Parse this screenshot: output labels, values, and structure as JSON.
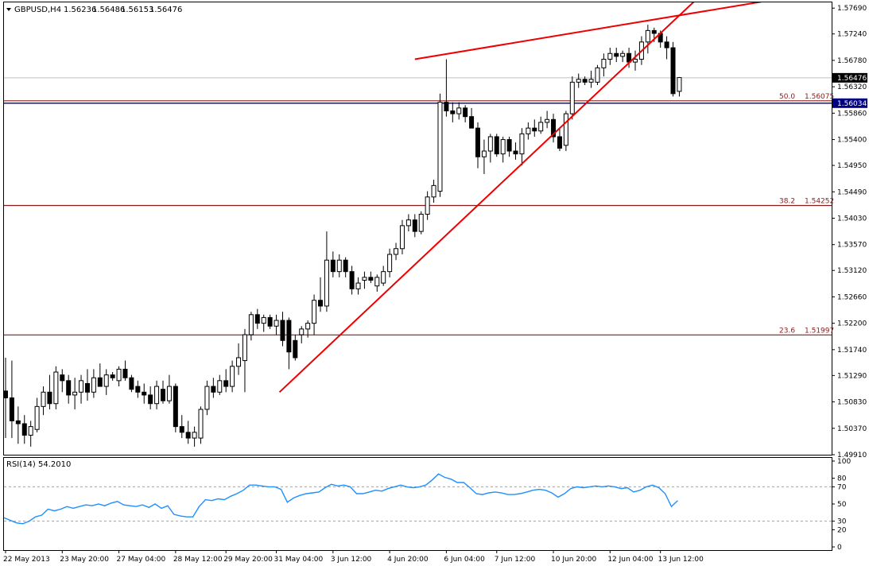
{
  "chart_data": [
    {
      "type": "candlestick",
      "header": {
        "symbol": "GBPUSD,H4",
        "open": "1.56236",
        "high": "1.56486",
        "low": "1.56153",
        "close": "1.56476"
      },
      "ylim": [
        1.4991,
        1.5779
      ],
      "price_ticks": [
        "1.57690",
        "1.57240",
        "1.56780",
        "1.56320",
        "1.55860",
        "1.55400",
        "1.54950",
        "1.54490",
        "1.54030",
        "1.53570",
        "1.53120",
        "1.52660",
        "1.52200",
        "1.51740",
        "1.51290",
        "1.50830",
        "1.50370",
        "1.49910"
      ],
      "current_price": "1.56476",
      "bid_line": "1.56034",
      "candles": [
        {
          "o": 1.5102,
          "h": 1.516,
          "l": 1.502,
          "c": 1.509
        },
        {
          "o": 1.509,
          "h": 1.5155,
          "l": 1.502,
          "c": 1.505
        },
        {
          "o": 1.505,
          "h": 1.5075,
          "l": 1.501,
          "c": 1.5045
        },
        {
          "o": 1.5045,
          "h": 1.506,
          "l": 1.501,
          "c": 1.5025
        },
        {
          "o": 1.5025,
          "h": 1.505,
          "l": 1.5005,
          "c": 1.504
        },
        {
          "o": 1.5035,
          "h": 1.509,
          "l": 1.503,
          "c": 1.5075
        },
        {
          "o": 1.5075,
          "h": 1.511,
          "l": 1.506,
          "c": 1.51
        },
        {
          "o": 1.51,
          "h": 1.513,
          "l": 1.507,
          "c": 1.508
        },
        {
          "o": 1.508,
          "h": 1.5145,
          "l": 1.507,
          "c": 1.5135
        },
        {
          "o": 1.513,
          "h": 1.514,
          "l": 1.51,
          "c": 1.512
        },
        {
          "o": 1.512,
          "h": 1.513,
          "l": 1.508,
          "c": 1.5095
        },
        {
          "o": 1.5095,
          "h": 1.5125,
          "l": 1.507,
          "c": 1.51
        },
        {
          "o": 1.51,
          "h": 1.513,
          "l": 1.508,
          "c": 1.512
        },
        {
          "o": 1.5115,
          "h": 1.514,
          "l": 1.5085,
          "c": 1.51
        },
        {
          "o": 1.51,
          "h": 1.514,
          "l": 1.509,
          "c": 1.5125
        },
        {
          "o": 1.5125,
          "h": 1.515,
          "l": 1.511,
          "c": 1.511
        },
        {
          "o": 1.511,
          "h": 1.514,
          "l": 1.5095,
          "c": 1.513
        },
        {
          "o": 1.513,
          "h": 1.5135,
          "l": 1.512,
          "c": 1.5125
        },
        {
          "o": 1.512,
          "h": 1.5145,
          "l": 1.511,
          "c": 1.514
        },
        {
          "o": 1.514,
          "h": 1.5155,
          "l": 1.512,
          "c": 1.5125
        },
        {
          "o": 1.5125,
          "h": 1.513,
          "l": 1.51,
          "c": 1.5105
        },
        {
          "o": 1.511,
          "h": 1.512,
          "l": 1.509,
          "c": 1.51
        },
        {
          "o": 1.51,
          "h": 1.5115,
          "l": 1.508,
          "c": 1.5095
        },
        {
          "o": 1.5095,
          "h": 1.511,
          "l": 1.507,
          "c": 1.508
        },
        {
          "o": 1.508,
          "h": 1.512,
          "l": 1.507,
          "c": 1.511
        },
        {
          "o": 1.5105,
          "h": 1.512,
          "l": 1.508,
          "c": 1.5085
        },
        {
          "o": 1.5085,
          "h": 1.513,
          "l": 1.508,
          "c": 1.511
        },
        {
          "o": 1.511,
          "h": 1.5115,
          "l": 1.503,
          "c": 1.504
        },
        {
          "o": 1.504,
          "h": 1.506,
          "l": 1.502,
          "c": 1.503
        },
        {
          "o": 1.503,
          "h": 1.505,
          "l": 1.501,
          "c": 1.502
        },
        {
          "o": 1.502,
          "h": 1.504,
          "l": 1.5005,
          "c": 1.503
        },
        {
          "o": 1.502,
          "h": 1.5075,
          "l": 1.501,
          "c": 1.507
        },
        {
          "o": 1.507,
          "h": 1.512,
          "l": 1.506,
          "c": 1.511
        },
        {
          "o": 1.511,
          "h": 1.5125,
          "l": 1.509,
          "c": 1.51
        },
        {
          "o": 1.51,
          "h": 1.513,
          "l": 1.5095,
          "c": 1.512
        },
        {
          "o": 1.512,
          "h": 1.514,
          "l": 1.51,
          "c": 1.511
        },
        {
          "o": 1.511,
          "h": 1.5155,
          "l": 1.51,
          "c": 1.5145
        },
        {
          "o": 1.5145,
          "h": 1.5185,
          "l": 1.513,
          "c": 1.516
        },
        {
          "o": 1.5155,
          "h": 1.521,
          "l": 1.51,
          "c": 1.52
        },
        {
          "o": 1.52,
          "h": 1.524,
          "l": 1.519,
          "c": 1.5235
        },
        {
          "o": 1.5235,
          "h": 1.5245,
          "l": 1.521,
          "c": 1.522
        },
        {
          "o": 1.522,
          "h": 1.5235,
          "l": 1.5205,
          "c": 1.523
        },
        {
          "o": 1.523,
          "h": 1.5235,
          "l": 1.521,
          "c": 1.5215
        },
        {
          "o": 1.5215,
          "h": 1.5235,
          "l": 1.52,
          "c": 1.5225
        },
        {
          "o": 1.5225,
          "h": 1.524,
          "l": 1.518,
          "c": 1.519
        },
        {
          "o": 1.5225,
          "h": 1.523,
          "l": 1.514,
          "c": 1.517
        },
        {
          "o": 1.519,
          "h": 1.52,
          "l": 1.5155,
          "c": 1.516
        },
        {
          "o": 1.52,
          "h": 1.5215,
          "l": 1.5185,
          "c": 1.521
        },
        {
          "o": 1.521,
          "h": 1.5225,
          "l": 1.5195,
          "c": 1.522
        },
        {
          "o": 1.522,
          "h": 1.527,
          "l": 1.52,
          "c": 1.526
        },
        {
          "o": 1.526,
          "h": 1.53,
          "l": 1.524,
          "c": 1.525
        },
        {
          "o": 1.525,
          "h": 1.538,
          "l": 1.524,
          "c": 1.533
        },
        {
          "o": 1.533,
          "h": 1.5345,
          "l": 1.53,
          "c": 1.531
        },
        {
          "o": 1.531,
          "h": 1.534,
          "l": 1.53,
          "c": 1.533
        },
        {
          "o": 1.533,
          "h": 1.5335,
          "l": 1.53,
          "c": 1.531
        },
        {
          "o": 1.531,
          "h": 1.532,
          "l": 1.527,
          "c": 1.528
        },
        {
          "o": 1.528,
          "h": 1.53,
          "l": 1.527,
          "c": 1.529
        },
        {
          "o": 1.5295,
          "h": 1.531,
          "l": 1.528,
          "c": 1.53
        },
        {
          "o": 1.53,
          "h": 1.531,
          "l": 1.529,
          "c": 1.5295
        },
        {
          "o": 1.5285,
          "h": 1.5305,
          "l": 1.5275,
          "c": 1.53
        },
        {
          "o": 1.529,
          "h": 1.532,
          "l": 1.5285,
          "c": 1.531
        },
        {
          "o": 1.531,
          "h": 1.535,
          "l": 1.53,
          "c": 1.534
        },
        {
          "o": 1.534,
          "h": 1.536,
          "l": 1.533,
          "c": 1.535
        },
        {
          "o": 1.535,
          "h": 1.54,
          "l": 1.534,
          "c": 1.539
        },
        {
          "o": 1.539,
          "h": 1.541,
          "l": 1.538,
          "c": 1.54
        },
        {
          "o": 1.54,
          "h": 1.541,
          "l": 1.537,
          "c": 1.538
        },
        {
          "o": 1.538,
          "h": 1.5415,
          "l": 1.5375,
          "c": 1.541
        },
        {
          "o": 1.541,
          "h": 1.545,
          "l": 1.54,
          "c": 1.544
        },
        {
          "o": 1.544,
          "h": 1.547,
          "l": 1.543,
          "c": 1.546
        },
        {
          "o": 1.545,
          "h": 1.562,
          "l": 1.544,
          "c": 1.5605
        },
        {
          "o": 1.5605,
          "h": 1.568,
          "l": 1.558,
          "c": 1.559
        },
        {
          "o": 1.559,
          "h": 1.5605,
          "l": 1.557,
          "c": 1.5585
        },
        {
          "o": 1.5585,
          "h": 1.5605,
          "l": 1.5575,
          "c": 1.5595
        },
        {
          "o": 1.5595,
          "h": 1.56,
          "l": 1.557,
          "c": 1.558
        },
        {
          "o": 1.558,
          "h": 1.5595,
          "l": 1.556,
          "c": 1.556
        },
        {
          "o": 1.556,
          "h": 1.557,
          "l": 1.549,
          "c": 1.551
        },
        {
          "o": 1.551,
          "h": 1.554,
          "l": 1.548,
          "c": 1.552
        },
        {
          "o": 1.552,
          "h": 1.555,
          "l": 1.55,
          "c": 1.5545
        },
        {
          "o": 1.5545,
          "h": 1.555,
          "l": 1.551,
          "c": 1.5515
        },
        {
          "o": 1.5515,
          "h": 1.5545,
          "l": 1.55,
          "c": 1.554
        },
        {
          "o": 1.554,
          "h": 1.5545,
          "l": 1.551,
          "c": 1.552
        },
        {
          "o": 1.552,
          "h": 1.5535,
          "l": 1.5505,
          "c": 1.5515
        },
        {
          "o": 1.5515,
          "h": 1.556,
          "l": 1.5495,
          "c": 1.555
        },
        {
          "o": 1.555,
          "h": 1.557,
          "l": 1.554,
          "c": 1.556
        },
        {
          "o": 1.556,
          "h": 1.5575,
          "l": 1.5545,
          "c": 1.5555
        },
        {
          "o": 1.5555,
          "h": 1.558,
          "l": 1.555,
          "c": 1.557
        },
        {
          "o": 1.557,
          "h": 1.559,
          "l": 1.556,
          "c": 1.5575
        },
        {
          "o": 1.5575,
          "h": 1.5585,
          "l": 1.5535,
          "c": 1.5545
        },
        {
          "o": 1.5545,
          "h": 1.556,
          "l": 1.552,
          "c": 1.5525
        },
        {
          "o": 1.553,
          "h": 1.559,
          "l": 1.552,
          "c": 1.5585
        },
        {
          "o": 1.5585,
          "h": 1.565,
          "l": 1.5575,
          "c": 1.564
        },
        {
          "o": 1.564,
          "h": 1.5655,
          "l": 1.563,
          "c": 1.5645
        },
        {
          "o": 1.5645,
          "h": 1.565,
          "l": 1.5635,
          "c": 1.564
        },
        {
          "o": 1.564,
          "h": 1.566,
          "l": 1.563,
          "c": 1.5645
        },
        {
          "o": 1.564,
          "h": 1.567,
          "l": 1.5635,
          "c": 1.5665
        },
        {
          "o": 1.5665,
          "h": 1.569,
          "l": 1.565,
          "c": 1.568
        },
        {
          "o": 1.568,
          "h": 1.57,
          "l": 1.567,
          "c": 1.569
        },
        {
          "o": 1.569,
          "h": 1.57,
          "l": 1.5675,
          "c": 1.5685
        },
        {
          "o": 1.5685,
          "h": 1.5695,
          "l": 1.5675,
          "c": 1.569
        },
        {
          "o": 1.569,
          "h": 1.57,
          "l": 1.5665,
          "c": 1.5675
        },
        {
          "o": 1.5675,
          "h": 1.5695,
          "l": 1.566,
          "c": 1.568
        },
        {
          "o": 1.568,
          "h": 1.572,
          "l": 1.567,
          "c": 1.571
        },
        {
          "o": 1.571,
          "h": 1.574,
          "l": 1.569,
          "c": 1.573
        },
        {
          "o": 1.573,
          "h": 1.5735,
          "l": 1.571,
          "c": 1.5725
        },
        {
          "o": 1.5725,
          "h": 1.573,
          "l": 1.57,
          "c": 1.571
        },
        {
          "o": 1.571,
          "h": 1.572,
          "l": 1.568,
          "c": 1.57
        },
        {
          "o": 1.57,
          "h": 1.571,
          "l": 1.5615,
          "c": 1.562
        },
        {
          "o": 1.5624,
          "h": 1.5649,
          "l": 1.5615,
          "c": 1.5648
        }
      ],
      "fibonacci": [
        {
          "level": "50.0",
          "price": "1.56075",
          "value": 1.56075
        },
        {
          "level": "38.2",
          "price": "1.54252",
          "value": 1.54252
        },
        {
          "level": "23.6",
          "price": "1.51997",
          "value": 1.51997
        }
      ],
      "trendlines": [
        {
          "x1": 43.5,
          "y1": 1.51,
          "x2": 109.3,
          "y2": 1.578
        },
        {
          "x1": 65,
          "y1": 1.568,
          "x2": 120,
          "y2": 1.578
        }
      ],
      "x_tick_labels": [
        {
          "label": "22 May 2013",
          "bar": 0
        },
        {
          "label": "23 May 20:00",
          "bar": 9
        },
        {
          "label": "27 May 04:00",
          "bar": 18
        },
        {
          "label": "28 May 12:00",
          "bar": 27
        },
        {
          "label": "29 May 20:00",
          "bar": 35
        },
        {
          "label": "31 May 04:00",
          "bar": 43
        },
        {
          "label": "3 Jun 12:00",
          "bar": 52
        },
        {
          "label": "4 Jun 20:00",
          "bar": 61
        },
        {
          "label": "6 Jun 04:00",
          "bar": 70
        },
        {
          "label": "7 Jun 12:00",
          "bar": 78
        },
        {
          "label": "10 Jun 20:00",
          "bar": 87
        },
        {
          "label": "12 Jun 04:00",
          "bar": 96
        },
        {
          "label": "13 Jun 12:00",
          "bar": 104
        }
      ],
      "colors": {
        "bull": "#ffffff",
        "bear": "#000000",
        "trend": "#ee0000",
        "fibo": "#8b1a1a",
        "bid": "#000080",
        "rsi": "#1e90ff"
      }
    },
    {
      "type": "line",
      "title": "RSI(14) 54.2010",
      "ylim": [
        0,
        100
      ],
      "levels": [
        30,
        70
      ],
      "y_ticks": [
        "100",
        "80",
        "70",
        "50",
        "30",
        "20",
        "0"
      ],
      "values": [
        34,
        31,
        28,
        27,
        30,
        35,
        37,
        44,
        42,
        44,
        47,
        45,
        47,
        49,
        48,
        50,
        48,
        51,
        53,
        49,
        48,
        47,
        49,
        46,
        50,
        45,
        48,
        38,
        36,
        35,
        35,
        47,
        55,
        54,
        56,
        55,
        59,
        62,
        66,
        72,
        72,
        71,
        70,
        70,
        67,
        52,
        57,
        60,
        62,
        63,
        64,
        69,
        73,
        71,
        72,
        70,
        62,
        62,
        64,
        66,
        65,
        68,
        70,
        72,
        70,
        69,
        70,
        72,
        78,
        85,
        81,
        79,
        75,
        75,
        69,
        62,
        61,
        63,
        64,
        63,
        61,
        61,
        62,
        64,
        66,
        67,
        66,
        63,
        58,
        62,
        68,
        70,
        69,
        70,
        71,
        70,
        71,
        70,
        68,
        69,
        64,
        66,
        70,
        72,
        69,
        62,
        47,
        54
      ]
    }
  ]
}
